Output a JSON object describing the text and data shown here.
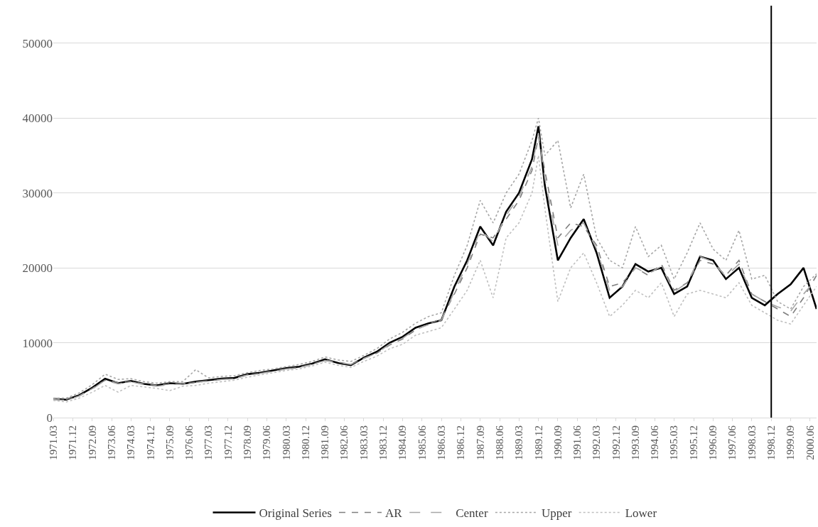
{
  "chart_data": {
    "type": "line",
    "x": [
      "1971-03",
      "1971-09",
      "1972-03",
      "1972-09",
      "1973-03",
      "1973-09",
      "1974-03",
      "1974-09",
      "1975-03",
      "1975-09",
      "1976-03",
      "1976-09",
      "1977-03",
      "1977-09",
      "1978-03",
      "1978-09",
      "1979-03",
      "1979-09",
      "1980-03",
      "1980-09",
      "1981-03",
      "1981-09",
      "1982-03",
      "1982-09",
      "1983-03",
      "1983-09",
      "1984-03",
      "1984-09",
      "1985-03",
      "1985-09",
      "1986-03",
      "1986-09",
      "1987-03",
      "1987-09",
      "1988-03",
      "1988-09",
      "1989-03",
      "1989-09",
      "1989-12",
      "1990-03",
      "1990-09",
      "1991-03",
      "1991-09",
      "1992-03",
      "1992-09",
      "1993-03",
      "1993-09",
      "1994-03",
      "1994-09",
      "1995-03",
      "1995-09",
      "1996-03",
      "1996-09",
      "1997-03",
      "1997-09",
      "1998-03",
      "1998-09",
      "1999-03",
      "1999-09",
      "2000-03",
      "2000-09"
    ],
    "series": [
      {
        "name": "Original Series",
        "color": "#000000",
        "line_style": "solid",
        "values": [
          2500,
          2400,
          3000,
          4000,
          5200,
          4600,
          4900,
          4500,
          4300,
          4600,
          4500,
          4800,
          5000,
          5200,
          5300,
          5800,
          6000,
          6300,
          6600,
          6800,
          7200,
          7800,
          7300,
          7000,
          8000,
          8800,
          10000,
          10800,
          12000,
          12600,
          13000,
          17500,
          21000,
          25500,
          23000,
          27500,
          30000,
          34500,
          38900,
          31000,
          21000,
          24000,
          26500,
          22000,
          16000,
          17500,
          20500,
          19500,
          20000,
          16500,
          17500,
          21500,
          21000,
          18500,
          20000,
          16000,
          15000,
          16500,
          17800,
          20000,
          14500
        ]
      },
      {
        "name": "AR",
        "color": "#7f7f7f",
        "line_style": "dashed",
        "values": [
          2500,
          2450,
          2900,
          3900,
          5000,
          4700,
          4800,
          4500,
          4300,
          4500,
          4500,
          4700,
          4900,
          5100,
          5200,
          5700,
          5900,
          6200,
          6500,
          6700,
          7100,
          7700,
          7400,
          7100,
          7900,
          8600,
          9700,
          10500,
          11700,
          12500,
          13200,
          16500,
          20000,
          24500,
          24000,
          26500,
          29000,
          33000,
          37500,
          33000,
          24000,
          26000,
          25500,
          23000,
          17500,
          18000,
          20000,
          19000,
          20500,
          17000,
          18000,
          21000,
          20500,
          19000,
          21000,
          16500,
          15500,
          14500,
          13500,
          16000,
          19000
        ]
      },
      {
        "name": "Center",
        "color": "#a6a6a6",
        "line_style": "longdash",
        "values": [
          2400,
          2300,
          2900,
          3800,
          5000,
          4500,
          4800,
          4400,
          4200,
          4400,
          4500,
          4700,
          4900,
          5100,
          5200,
          5700,
          5900,
          6200,
          6500,
          6700,
          7100,
          7600,
          7400,
          7100,
          7900,
          8600,
          9800,
          10600,
          11800,
          12400,
          13000,
          16800,
          20500,
          25000,
          23500,
          27000,
          29500,
          33500,
          38000,
          32000,
          23000,
          25000,
          26000,
          22500,
          17000,
          17500,
          20000,
          19200,
          20200,
          16800,
          18000,
          21500,
          20800,
          18800,
          20500,
          16500,
          15500,
          14800,
          14200,
          16500,
          18500
        ]
      },
      {
        "name": "Upper",
        "color": "#a6a6a6",
        "line_style": "dotted",
        "values": [
          2600,
          2600,
          3300,
          4400,
          5800,
          5100,
          5200,
          4800,
          4600,
          4800,
          4800,
          6400,
          5300,
          5500,
          5600,
          6000,
          6300,
          6500,
          6800,
          7100,
          7500,
          8100,
          7700,
          7500,
          8300,
          9200,
          10500,
          11400,
          12600,
          13500,
          14000,
          19000,
          23000,
          29000,
          26000,
          30000,
          32500,
          37000,
          40000,
          35000,
          37000,
          28000,
          32500,
          24000,
          21000,
          20000,
          25500,
          21500,
          23000,
          18500,
          22000,
          26000,
          22500,
          21000,
          25000,
          18500,
          19000,
          15500,
          14500,
          17500,
          19200
        ]
      },
      {
        "name": "Lower",
        "color": "#bfbfbf",
        "line_style": "dotted",
        "values": [
          2300,
          2100,
          2600,
          3400,
          4300,
          3400,
          4300,
          4100,
          3900,
          3600,
          4200,
          4300,
          4600,
          4800,
          5000,
          5400,
          5700,
          6000,
          6300,
          6500,
          6900,
          7400,
          7000,
          6700,
          7500,
          8200,
          9200,
          9800,
          11000,
          11500,
          12000,
          14500,
          17000,
          21000,
          16000,
          24000,
          26000,
          30000,
          35000,
          28000,
          15500,
          20000,
          22000,
          18000,
          13500,
          15000,
          17000,
          16000,
          18000,
          13500,
          16500,
          17000,
          16500,
          16000,
          18000,
          15000,
          14000,
          13000,
          12500,
          15000,
          17500
        ]
      }
    ],
    "xlim": [
      "1971-03",
      "2000-09"
    ],
    "xticks": [
      {
        "value": "1971-03",
        "label": "1971.03"
      },
      {
        "value": "1971-12",
        "label": "1971.12"
      },
      {
        "value": "1972-09",
        "label": "1972.09"
      },
      {
        "value": "1973-06",
        "label": "1973.06"
      },
      {
        "value": "1974-03",
        "label": "1974.03"
      },
      {
        "value": "1974-12",
        "label": "1974.12"
      },
      {
        "value": "1975-09",
        "label": "1975.09"
      },
      {
        "value": "1976-06",
        "label": "1976.06"
      },
      {
        "value": "1977-03",
        "label": "1977.03"
      },
      {
        "value": "1977-12",
        "label": "1977.12"
      },
      {
        "value": "1978-09",
        "label": "1978.09"
      },
      {
        "value": "1979-06",
        "label": "1979.06"
      },
      {
        "value": "1980-03",
        "label": "1980.03"
      },
      {
        "value": "1980-12",
        "label": "1980.12"
      },
      {
        "value": "1981-09",
        "label": "1981.09"
      },
      {
        "value": "1982-06",
        "label": "1982.06"
      },
      {
        "value": "1983-03",
        "label": "1983.03"
      },
      {
        "value": "1983-12",
        "label": "1983.12"
      },
      {
        "value": "1984-09",
        "label": "1984.09"
      },
      {
        "value": "1985-06",
        "label": "1985.06"
      },
      {
        "value": "1986-03",
        "label": "1986.03"
      },
      {
        "value": "1986-12",
        "label": "1986.12"
      },
      {
        "value": "1987-09",
        "label": "1987.09"
      },
      {
        "value": "1988-06",
        "label": "1988.06"
      },
      {
        "value": "1989-03",
        "label": "1989.03"
      },
      {
        "value": "1989-12",
        "label": "1989.12"
      },
      {
        "value": "1990-09",
        "label": "1990.09"
      },
      {
        "value": "1991-06",
        "label": "1991.06"
      },
      {
        "value": "1992-03",
        "label": "1992.03"
      },
      {
        "value": "1992-12",
        "label": "1992.12"
      },
      {
        "value": "1993-09",
        "label": "1993.09"
      },
      {
        "value": "1994-06",
        "label": "1994.06"
      },
      {
        "value": "1995-03",
        "label": "1995.03"
      },
      {
        "value": "1995-12",
        "label": "1995.12"
      },
      {
        "value": "1996-09",
        "label": "1996.09"
      },
      {
        "value": "1997-06",
        "label": "1997.06"
      },
      {
        "value": "1998-03",
        "label": "1998.03"
      },
      {
        "value": "1998-12",
        "label": "1998.12"
      },
      {
        "value": "1999-09",
        "label": "1999.09"
      },
      {
        "value": "2000-06",
        "label": "2000.06"
      }
    ],
    "ylim": [
      0,
      55000
    ],
    "yticks": [
      0,
      10000,
      20000,
      30000,
      40000,
      50000
    ],
    "ref_lines": [
      {
        "axis": "x",
        "value": "1998-12",
        "label": null,
        "color": "#000000"
      }
    ],
    "grid": "y",
    "legend": "bottom",
    "marker": "none"
  }
}
